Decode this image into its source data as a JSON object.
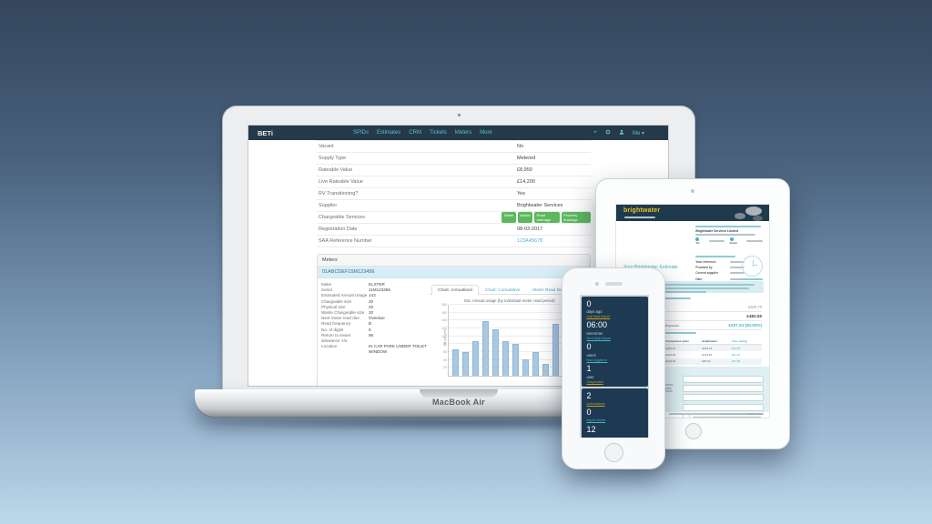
{
  "device_labels": {
    "laptop": "MacBook Air"
  },
  "laptop_app": {
    "navbar": {
      "brand": "BETi",
      "items": [
        "SPIDs",
        "Estimates",
        "CRM",
        "Tickets",
        "Meters",
        "More"
      ],
      "add_icon": "+",
      "user_menu": "Me"
    },
    "property_rows": [
      {
        "label": "Vacant",
        "value": "No"
      },
      {
        "label": "Supply Type",
        "value": "Metered"
      },
      {
        "label": "Rateable Value",
        "value": "£8,950"
      },
      {
        "label": "Live Rateable Value",
        "value": "£14,200"
      },
      {
        "label": "RV Transitioning?",
        "value": "Yes"
      },
      {
        "label": "Supplier",
        "value": "Brightwater Services"
      },
      {
        "label": "Chargeable Services",
        "badges": [
          "Water",
          "Waste",
          "Road drainage",
          "Property drainage"
        ]
      },
      {
        "label": "Registration Date",
        "value": "08-03-2017"
      },
      {
        "label": "SAA Reference Number",
        "value": "123A45678",
        "link": true
      }
    ],
    "meters": {
      "panel_title": "Meters",
      "spid": "01ABCDEF15M123456",
      "details": [
        {
          "label": "Make",
          "value": "ELSTER"
        },
        {
          "label": "Serial",
          "value": "11M123456"
        },
        {
          "label": "Estimated Annual Usage",
          "value": "143"
        },
        {
          "label": "Chargeable size",
          "value": "20"
        },
        {
          "label": "Physical size",
          "value": "20"
        },
        {
          "label": "Waste Chargeable size",
          "value": "20"
        },
        {
          "label": "Next meter read due",
          "value": "Overdue"
        },
        {
          "label": "Read frequency",
          "value": "B"
        },
        {
          "label": "No. of digits",
          "value": "6"
        },
        {
          "label": "Return to sewer allowance Y/e",
          "value": "95"
        },
        {
          "label": "Location",
          "value": "IN CAR PARK UNDER TOILET WINDOW"
        }
      ],
      "tabs": [
        {
          "label": "Chart: Annualised",
          "active": true
        },
        {
          "label": "Chart: Cumulative",
          "active": false
        },
        {
          "label": "Meter Read Data",
          "active": false
        }
      ]
    }
  },
  "chart_data": {
    "type": "bar",
    "title": "Est. Annual usage (by individual meter read period)",
    "xlabel": "",
    "ylabel": "m3 per year",
    "ylim": [
      0,
      180
    ],
    "ytick_step": 20,
    "grid": true,
    "legend": false,
    "bar_color": "#a9c8e2",
    "categories": [
      "",
      "",
      "",
      "",
      "",
      "",
      "",
      "",
      "",
      "",
      "",
      "",
      ""
    ],
    "values": [
      66,
      61,
      88,
      138,
      118,
      88,
      80,
      42,
      60,
      30,
      132,
      145,
      132
    ]
  },
  "tablet_doc": {
    "brand": "brightwater",
    "company": "Brightwater Services Limited",
    "contact": {
      "tel_label": "Tel",
      "email_label": "Email"
    },
    "info_rows": [
      {
        "label": "Your reference"
      },
      {
        "label": "Provided by"
      },
      {
        "label": "Current supplier"
      },
      {
        "label": "Date"
      }
    ],
    "estimate_heading": "Your Brightwater Estimate",
    "charges": [
      {
        "label": "Current supplier tariff",
        "value": "£690.79",
        "style": "muted"
      },
      {
        "label": "With Brightwater tariff",
        "value": "£483.55",
        "style": ""
      },
      {
        "label": "Your estimated annual saving with Brightwater",
        "value": "£207.24 (30.00%)",
        "style": "accent"
      }
    ],
    "services_table": {
      "headers": [
        "Your services",
        "Comparison price",
        "Brightwater",
        "Your saving"
      ],
      "rows": [
        [
          "Water",
          "£241.61",
          "£169.13",
          "£72.48"
        ],
        [
          "Waste",
          "£214.06",
          "£149.84",
          "£64.22"
        ],
        [
          "Property drainage",
          "£124.34",
          "£87.04",
          "£37.30"
        ],
        [
          "Road drainage",
          "£110.78",
          "£77.54",
          "£33.24"
        ]
      ]
    },
    "form_heading": "Why Brightwater?",
    "footer_page": "Page 1 of 2"
  },
  "phone_app": {
    "cards": [
      {
        "metrics": [
          {
            "value": "0",
            "label": "days ago",
            "link": "Last data import",
            "accent": "yellow"
          },
          {
            "value": "06:00",
            "label": "tomorrow",
            "link": "Next data import",
            "accent": "teal"
          },
          {
            "value": "0",
            "label": "users",
            "link": "Now logged in",
            "accent": "teal"
          },
          {
            "value": "1",
            "label": "user",
            "link": "Suspended",
            "accent": "yellow"
          }
        ]
      },
      {
        "metrics": [
          {
            "value": "2",
            "label": "",
            "link": "Automations",
            "accent": "yellow"
          },
          {
            "value": "0",
            "label": "",
            "link": "Import errors",
            "accent": "teal"
          },
          {
            "value": "12",
            "label": "",
            "link": "",
            "accent": "teal"
          }
        ]
      }
    ]
  }
}
